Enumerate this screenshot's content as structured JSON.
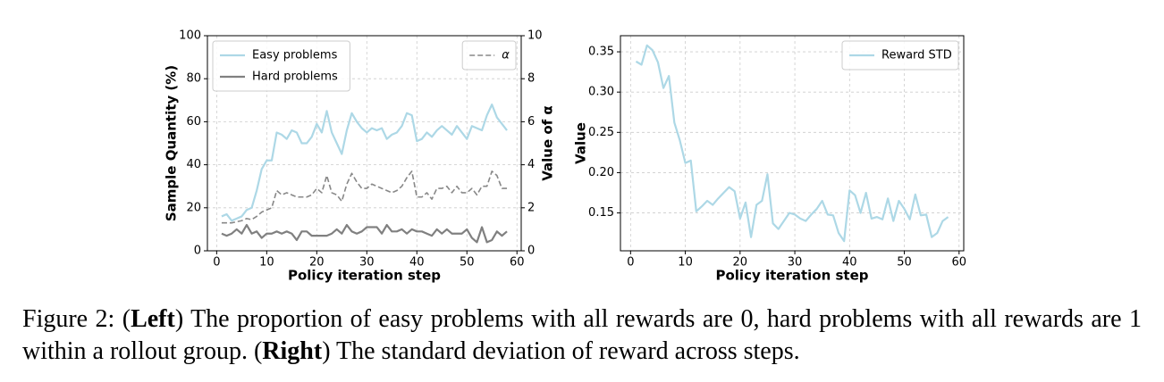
{
  "chart_data": [
    {
      "type": "line",
      "xlabel": "Policy iteration step",
      "ylabel": "Sample Quantity (%)",
      "y2label": "Value of α",
      "x": [
        1,
        2,
        3,
        4,
        5,
        6,
        7,
        8,
        9,
        10,
        11,
        12,
        13,
        14,
        15,
        16,
        17,
        18,
        19,
        20,
        21,
        22,
        23,
        24,
        25,
        26,
        27,
        28,
        29,
        30,
        31,
        32,
        33,
        34,
        35,
        36,
        37,
        38,
        39,
        40,
        41,
        42,
        43,
        44,
        45,
        46,
        47,
        48,
        49,
        50,
        51,
        52,
        53,
        54,
        55,
        56,
        57,
        58
      ],
      "series": [
        {
          "name": "Easy problems",
          "color": "#add8e6",
          "values": [
            16,
            17,
            14,
            15,
            16,
            19,
            20,
            28,
            38,
            42,
            42,
            55,
            54,
            52,
            56,
            55,
            50,
            50,
            53,
            59,
            55,
            65,
            55,
            50,
            45,
            56,
            64,
            60,
            57,
            55,
            57,
            56,
            57,
            52,
            54,
            55,
            58,
            64,
            63,
            51,
            52,
            55,
            53,
            56,
            58,
            56,
            54,
            58,
            55,
            52,
            58,
            57,
            56,
            63,
            68,
            62,
            59,
            56
          ]
        },
        {
          "name": "Hard problems",
          "color": "#808080",
          "values": [
            8,
            7,
            8,
            10,
            8,
            12,
            8,
            9,
            6,
            8,
            8,
            9,
            8,
            9,
            8,
            5,
            9,
            9,
            7,
            7,
            7,
            7,
            8,
            10,
            8,
            12,
            9,
            8,
            9,
            11,
            11,
            11,
            8,
            12,
            9,
            9,
            10,
            8,
            10,
            9,
            9,
            8,
            7,
            10,
            8,
            10,
            8,
            8,
            8,
            10,
            6,
            4,
            11,
            4,
            5,
            9,
            7,
            9
          ]
        },
        {
          "name": "α",
          "color": "#888888",
          "linestyle": "dashed",
          "axis": "y2",
          "values": [
            1.3,
            1.3,
            1.3,
            1.35,
            1.4,
            1.5,
            1.45,
            1.6,
            1.8,
            1.9,
            2.0,
            2.8,
            2.6,
            2.7,
            2.6,
            2.5,
            2.5,
            2.5,
            2.6,
            2.9,
            2.7,
            3.5,
            2.7,
            2.6,
            2.3,
            3.1,
            3.6,
            3.2,
            2.9,
            2.9,
            3.1,
            3.0,
            2.9,
            2.8,
            2.7,
            2.8,
            3.0,
            3.4,
            3.7,
            2.5,
            2.5,
            2.7,
            2.4,
            2.9,
            2.9,
            3.0,
            2.7,
            3.0,
            2.7,
            2.7,
            2.9,
            2.6,
            3.0,
            3.0,
            3.7,
            3.5,
            2.9,
            2.9
          ]
        }
      ],
      "xlim": [
        -1.85,
        60.85
      ],
      "xticks": [
        0,
        10,
        20,
        30,
        40,
        50,
        60
      ],
      "ylim": [
        0,
        100
      ],
      "yticks": [
        0,
        20,
        40,
        60,
        80,
        100
      ],
      "y2lim": [
        0,
        10
      ],
      "y2ticks": [
        0,
        2,
        4,
        6,
        8,
        10
      ],
      "grid": true,
      "legend": "upper left",
      "y2legend": "upper right"
    },
    {
      "type": "line",
      "xlabel": "Policy iteration step",
      "ylabel": "Value",
      "x": [
        1,
        2,
        3,
        4,
        5,
        6,
        7,
        8,
        9,
        10,
        11,
        12,
        13,
        14,
        15,
        16,
        17,
        18,
        19,
        20,
        21,
        22,
        23,
        24,
        25,
        26,
        27,
        28,
        29,
        30,
        31,
        32,
        33,
        34,
        35,
        36,
        37,
        38,
        39,
        40,
        41,
        42,
        43,
        44,
        45,
        46,
        47,
        48,
        49,
        50,
        51,
        52,
        53,
        54,
        55,
        56,
        57,
        58
      ],
      "series": [
        {
          "name": "Reward STD",
          "color": "#add8e6",
          "values": [
            0.338,
            0.334,
            0.358,
            0.352,
            0.337,
            0.305,
            0.32,
            0.262,
            0.24,
            0.212,
            0.215,
            0.152,
            0.158,
            0.165,
            0.16,
            0.168,
            0.175,
            0.182,
            0.177,
            0.143,
            0.163,
            0.12,
            0.16,
            0.165,
            0.198,
            0.137,
            0.13,
            0.14,
            0.15,
            0.148,
            0.143,
            0.14,
            0.148,
            0.155,
            0.165,
            0.148,
            0.147,
            0.125,
            0.115,
            0.178,
            0.172,
            0.15,
            0.175,
            0.143,
            0.145,
            0.142,
            0.168,
            0.14,
            0.165,
            0.155,
            0.142,
            0.173,
            0.147,
            0.148,
            0.12,
            0.125,
            0.14,
            0.145
          ]
        }
      ],
      "xlim": [
        -1.85,
        60.85
      ],
      "xticks": [
        0,
        10,
        20,
        30,
        40,
        50,
        60
      ],
      "ylim": [
        0.103,
        0.37
      ],
      "yticks": [
        0.15,
        {
          "value": 0.2,
          "label": "0.20"
        },
        0.25,
        {
          "value": 0.3,
          "label": "0.30"
        },
        0.35
      ],
      "grid": true,
      "legend": "upper right"
    }
  ],
  "caption": [
    {
      "text": "Figure 2: ("
    },
    {
      "text": "Left",
      "bold": true
    },
    {
      "text": ") The proportion of easy problems with all rewards are 0, hard problems with all rewards are 1 within a rollout group. ("
    },
    {
      "text": "Right",
      "bold": true
    },
    {
      "text": ") The standard deviation of reward across steps."
    }
  ]
}
